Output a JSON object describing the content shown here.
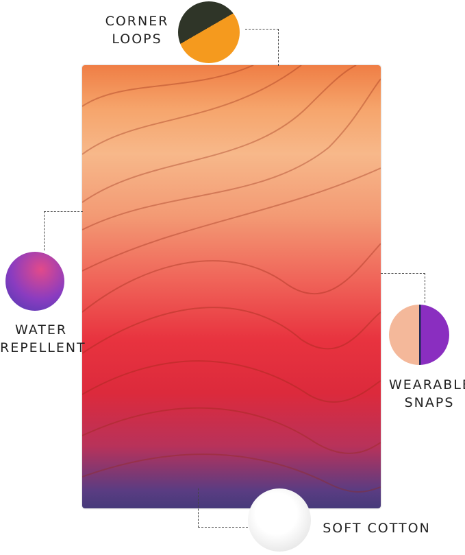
{
  "features": {
    "corner_loops": {
      "label_line1": "CORNER",
      "label_line2": "LOOPS",
      "icon": "corner-loop-closeup"
    },
    "water_repellent": {
      "label_line1": "WATER",
      "label_line2": "REPELLENT",
      "icon": "water-droplets-closeup"
    },
    "wearable_snaps": {
      "label_line1": "WEARABLE",
      "label_line2": "SNAPS",
      "icon": "snap-button-closeup"
    },
    "soft_cotton": {
      "label": "SOFT COTTON",
      "icon": "cotton-ball"
    }
  },
  "colors": {
    "top": "#ef7e45",
    "middle": "#e8333f",
    "bottom": "#463a7a"
  }
}
